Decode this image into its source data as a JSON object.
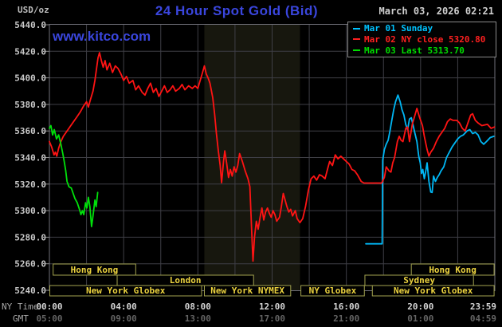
{
  "header": {
    "title": "24 Hour Spot Gold (Bid)",
    "datetime": "March 03, 2026 02:21",
    "watermark": "www.kitco.com",
    "unit_label": "USD/oz",
    "ny_time_label": "NY Time",
    "gmt_label": "GMT"
  },
  "colors": {
    "title_blue": "#3a46dd",
    "datetime_gray": "#d0d0d0",
    "unit_gray": "#bdbdbd",
    "axis_label_gray": "#a8a8a8",
    "ny_tick_gray": "#d6d6d6",
    "gmt_tick_gray": "#646464",
    "ytick_gray": "#c9c9c9",
    "grid": "#3f3f46",
    "border": "#70707a",
    "band": "#17170e",
    "session_border": "#a3a34f",
    "session_text": "#ecd33f",
    "mar01_cyan": "#00b7f5",
    "mar02_red": "#ff1414",
    "mar03_green": "#00e00a"
  },
  "legend": {
    "items": [
      {
        "name": "mar-01",
        "label": "Mar 01 Sunday",
        "color": "#00c3ff"
      },
      {
        "name": "mar-02",
        "label": "Mar 02 NY close 5320.80",
        "color": "#ff2020"
      },
      {
        "name": "mar-03",
        "label": "Mar 03 Last 5313.70",
        "color": "#00dd00"
      }
    ]
  },
  "chart_data": {
    "type": "line",
    "title": "24 Hour Spot Gold (Bid)",
    "ylabel": "USD/oz",
    "ylim": [
      5240,
      5440
    ],
    "y_tick_labels": [
      "5240.0",
      "5260.0",
      "5280.0",
      "5300.0",
      "5320.0",
      "5340.0",
      "5360.0",
      "5380.0",
      "5400.0",
      "5420.0",
      "5440.0"
    ],
    "xlim_hours": [
      0,
      24
    ],
    "x_gridline_step_hours": 2,
    "grid": true,
    "legend_position": "top-right",
    "shaded_region_hours": [
      8.35,
      13.5
    ],
    "time_ticks": [
      {
        "t": 0,
        "ny": "00:00",
        "gmt": "05:00"
      },
      {
        "t": 4,
        "ny": "04:00",
        "gmt": "09:00"
      },
      {
        "t": 8,
        "ny": "08:00",
        "gmt": "13:00"
      },
      {
        "t": 12,
        "ny": "12:00",
        "gmt": "17:00"
      },
      {
        "t": 16,
        "ny": "16:00",
        "gmt": "21:00"
      },
      {
        "t": 20,
        "ny": "20:00",
        "gmt": "01:00"
      },
      {
        "t": 23.98,
        "ny": "23:59",
        "gmt": "04:59"
      }
    ],
    "series": [
      {
        "name": "Mar 01 Sunday",
        "color_key": "mar01_cyan",
        "points": [
          [
            17.05,
            5275
          ],
          [
            17.93,
            5275
          ],
          [
            17.96,
            5338
          ],
          [
            18.05,
            5346
          ],
          [
            18.15,
            5350
          ],
          [
            18.25,
            5353
          ],
          [
            18.35,
            5360
          ],
          [
            18.45,
            5368
          ],
          [
            18.55,
            5376
          ],
          [
            18.65,
            5382
          ],
          [
            18.78,
            5387
          ],
          [
            18.9,
            5382
          ],
          [
            19.0,
            5376
          ],
          [
            19.1,
            5372
          ],
          [
            19.2,
            5365
          ],
          [
            19.3,
            5361
          ],
          [
            19.4,
            5369
          ],
          [
            19.5,
            5370
          ],
          [
            19.6,
            5364
          ],
          [
            19.7,
            5358
          ],
          [
            19.8,
            5352
          ],
          [
            19.9,
            5341
          ],
          [
            19.98,
            5336
          ],
          [
            20.05,
            5328
          ],
          [
            20.12,
            5331
          ],
          [
            20.2,
            5324
          ],
          [
            20.28,
            5330
          ],
          [
            20.35,
            5336
          ],
          [
            20.45,
            5322
          ],
          [
            20.55,
            5314
          ],
          [
            20.62,
            5313.7
          ],
          [
            20.7,
            5326
          ],
          [
            20.8,
            5322
          ],
          [
            20.9,
            5325
          ],
          [
            21.0,
            5327
          ],
          [
            21.1,
            5330
          ],
          [
            21.25,
            5333
          ],
          [
            21.4,
            5340
          ],
          [
            21.55,
            5344
          ],
          [
            21.7,
            5348
          ],
          [
            21.85,
            5351
          ],
          [
            22.0,
            5354
          ],
          [
            22.15,
            5356
          ],
          [
            22.3,
            5357
          ],
          [
            22.5,
            5360
          ],
          [
            22.65,
            5361
          ],
          [
            22.8,
            5358
          ],
          [
            22.95,
            5359
          ],
          [
            23.1,
            5357
          ],
          [
            23.25,
            5352
          ],
          [
            23.4,
            5350
          ],
          [
            23.55,
            5352
          ],
          [
            23.75,
            5355
          ],
          [
            23.95,
            5356
          ]
        ]
      },
      {
        "name": "Mar 02 NY close 5320.80",
        "color_key": "mar02_red",
        "points": [
          [
            0,
            5352
          ],
          [
            0.12,
            5348
          ],
          [
            0.25,
            5342
          ],
          [
            0.32,
            5344
          ],
          [
            0.4,
            5341
          ],
          [
            0.5,
            5347
          ],
          [
            0.62,
            5352
          ],
          [
            0.75,
            5356
          ],
          [
            0.9,
            5359
          ],
          [
            1.05,
            5362
          ],
          [
            1.25,
            5366
          ],
          [
            1.45,
            5370
          ],
          [
            1.65,
            5374
          ],
          [
            1.85,
            5379
          ],
          [
            2.0,
            5382
          ],
          [
            2.1,
            5378
          ],
          [
            2.2,
            5383
          ],
          [
            2.35,
            5390
          ],
          [
            2.45,
            5398
          ],
          [
            2.55,
            5408
          ],
          [
            2.62,
            5415
          ],
          [
            2.7,
            5419
          ],
          [
            2.8,
            5413
          ],
          [
            2.9,
            5408
          ],
          [
            3.0,
            5413
          ],
          [
            3.1,
            5406
          ],
          [
            3.25,
            5411
          ],
          [
            3.4,
            5404
          ],
          [
            3.55,
            5409
          ],
          [
            3.7,
            5407
          ],
          [
            3.85,
            5403
          ],
          [
            4.0,
            5398
          ],
          [
            4.15,
            5401
          ],
          [
            4.3,
            5396
          ],
          [
            4.5,
            5398
          ],
          [
            4.65,
            5391
          ],
          [
            4.8,
            5394
          ],
          [
            5.0,
            5389
          ],
          [
            5.15,
            5387
          ],
          [
            5.3,
            5392
          ],
          [
            5.45,
            5396
          ],
          [
            5.6,
            5389
          ],
          [
            5.75,
            5392
          ],
          [
            5.9,
            5386
          ],
          [
            6.05,
            5390
          ],
          [
            6.2,
            5394
          ],
          [
            6.35,
            5389
          ],
          [
            6.5,
            5391
          ],
          [
            6.65,
            5394
          ],
          [
            6.8,
            5390
          ],
          [
            7.0,
            5392
          ],
          [
            7.15,
            5395
          ],
          [
            7.3,
            5391
          ],
          [
            7.5,
            5394
          ],
          [
            7.7,
            5392
          ],
          [
            7.85,
            5394
          ],
          [
            8.0,
            5392
          ],
          [
            8.1,
            5397
          ],
          [
            8.25,
            5404
          ],
          [
            8.35,
            5409
          ],
          [
            8.45,
            5403
          ],
          [
            8.55,
            5400
          ],
          [
            8.65,
            5396
          ],
          [
            8.8,
            5385
          ],
          [
            8.9,
            5373
          ],
          [
            9.0,
            5358
          ],
          [
            9.1,
            5345
          ],
          [
            9.2,
            5334
          ],
          [
            9.28,
            5321
          ],
          [
            9.38,
            5337
          ],
          [
            9.45,
            5345
          ],
          [
            9.55,
            5336
          ],
          [
            9.65,
            5325
          ],
          [
            9.75,
            5331
          ],
          [
            9.85,
            5326
          ],
          [
            9.95,
            5333
          ],
          [
            10.05,
            5329
          ],
          [
            10.15,
            5334
          ],
          [
            10.25,
            5343
          ],
          [
            10.4,
            5337
          ],
          [
            10.55,
            5330
          ],
          [
            10.7,
            5324
          ],
          [
            10.8,
            5318
          ],
          [
            10.9,
            5284
          ],
          [
            10.97,
            5262
          ],
          [
            11.05,
            5280
          ],
          [
            11.15,
            5292
          ],
          [
            11.25,
            5286
          ],
          [
            11.35,
            5295
          ],
          [
            11.45,
            5302
          ],
          [
            11.55,
            5293
          ],
          [
            11.65,
            5299
          ],
          [
            11.75,
            5302
          ],
          [
            11.85,
            5298
          ],
          [
            11.95,
            5295
          ],
          [
            12.05,
            5300
          ],
          [
            12.15,
            5297
          ],
          [
            12.25,
            5292
          ],
          [
            12.4,
            5295
          ],
          [
            12.5,
            5303
          ],
          [
            12.6,
            5313
          ],
          [
            12.7,
            5308
          ],
          [
            12.8,
            5303
          ],
          [
            12.9,
            5299
          ],
          [
            13.0,
            5301
          ],
          [
            13.1,
            5296
          ],
          [
            13.25,
            5300
          ],
          [
            13.35,
            5294
          ],
          [
            13.5,
            5291
          ],
          [
            13.65,
            5294
          ],
          [
            13.8,
            5303
          ],
          [
            13.95,
            5315
          ],
          [
            14.1,
            5324
          ],
          [
            14.25,
            5326
          ],
          [
            14.4,
            5323
          ],
          [
            14.55,
            5327
          ],
          [
            14.7,
            5326
          ],
          [
            14.85,
            5324
          ],
          [
            15.0,
            5332
          ],
          [
            15.1,
            5337
          ],
          [
            15.25,
            5334
          ],
          [
            15.4,
            5342
          ],
          [
            15.55,
            5339
          ],
          [
            15.7,
            5341
          ],
          [
            15.85,
            5339
          ],
          [
            16.0,
            5337
          ],
          [
            16.15,
            5335
          ],
          [
            16.3,
            5331
          ],
          [
            16.45,
            5330
          ],
          [
            16.6,
            5327
          ],
          [
            16.8,
            5322
          ],
          [
            16.95,
            5320.8
          ],
          [
            17.9,
            5320.8
          ],
          [
            18.05,
            5325
          ],
          [
            18.15,
            5333
          ],
          [
            18.3,
            5330
          ],
          [
            18.4,
            5329
          ],
          [
            18.5,
            5336
          ],
          [
            18.6,
            5340
          ],
          [
            18.75,
            5352
          ],
          [
            18.85,
            5356
          ],
          [
            18.95,
            5353
          ],
          [
            19.05,
            5352
          ],
          [
            19.2,
            5362
          ],
          [
            19.3,
            5363
          ],
          [
            19.4,
            5352
          ],
          [
            19.55,
            5365
          ],
          [
            19.7,
            5372
          ],
          [
            19.8,
            5377
          ],
          [
            19.95,
            5370
          ],
          [
            20.1,
            5364
          ],
          [
            20.2,
            5356
          ],
          [
            20.35,
            5346
          ],
          [
            20.45,
            5341
          ],
          [
            20.55,
            5344
          ],
          [
            20.7,
            5347
          ],
          [
            20.85,
            5352
          ],
          [
            21.0,
            5356
          ],
          [
            21.15,
            5359
          ],
          [
            21.3,
            5362
          ],
          [
            21.45,
            5367
          ],
          [
            21.6,
            5369
          ],
          [
            21.75,
            5368
          ],
          [
            21.95,
            5368
          ],
          [
            22.1,
            5366
          ],
          [
            22.25,
            5362
          ],
          [
            22.4,
            5360
          ],
          [
            22.55,
            5366
          ],
          [
            22.7,
            5372
          ],
          [
            22.8,
            5373
          ],
          [
            22.95,
            5368
          ],
          [
            23.1,
            5366
          ],
          [
            23.3,
            5364
          ],
          [
            23.6,
            5365
          ],
          [
            23.8,
            5362
          ],
          [
            23.98,
            5363
          ]
        ]
      },
      {
        "name": "Mar 03 Last 5313.70",
        "color_key": "mar03_green",
        "points": [
          [
            0,
            5362
          ],
          [
            0.08,
            5364
          ],
          [
            0.17,
            5357
          ],
          [
            0.26,
            5361
          ],
          [
            0.38,
            5354
          ],
          [
            0.5,
            5357
          ],
          [
            0.62,
            5350
          ],
          [
            0.72,
            5343
          ],
          [
            0.8,
            5337
          ],
          [
            0.88,
            5330
          ],
          [
            0.95,
            5322
          ],
          [
            1.05,
            5318
          ],
          [
            1.18,
            5317
          ],
          [
            1.28,
            5313
          ],
          [
            1.38,
            5309
          ],
          [
            1.5,
            5306
          ],
          [
            1.62,
            5301
          ],
          [
            1.7,
            5297
          ],
          [
            1.78,
            5300
          ],
          [
            1.85,
            5297
          ],
          [
            1.95,
            5306
          ],
          [
            2.02,
            5302
          ],
          [
            2.1,
            5310
          ],
          [
            2.18,
            5303
          ],
          [
            2.27,
            5288
          ],
          [
            2.35,
            5296
          ],
          [
            2.45,
            5308
          ],
          [
            2.52,
            5303
          ],
          [
            2.6,
            5313.7
          ]
        ]
      }
    ],
    "sessions": [
      {
        "row": 0,
        "boxes": [
          {
            "label": "Hong Kong",
            "start": 0.2,
            "end": 4.65
          },
          {
            "label": "Hong Kong",
            "start": 19.5,
            "end": 23.96
          }
        ]
      },
      {
        "row": 1,
        "boxes": [
          {
            "label": "London",
            "start": 3.65,
            "end": 11.0
          },
          {
            "label": "Sydney",
            "start": 17.0,
            "end": 22.85
          }
        ]
      },
      {
        "row": 2,
        "boxes": [
          {
            "label": "New York Globex",
            "start": 0.02,
            "end": 8.2
          },
          {
            "label": "New York NYMEX",
            "start": 8.35,
            "end": 13.0
          },
          {
            "label": "NY Globex",
            "start": 13.55,
            "end": 16.97
          },
          {
            "label": "New York Globex",
            "start": 17.4,
            "end": 23.96
          }
        ]
      }
    ]
  }
}
